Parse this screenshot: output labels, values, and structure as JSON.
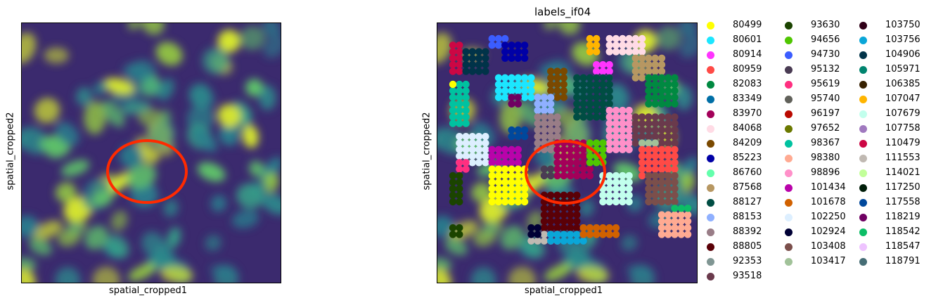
{
  "panels": [
    {
      "title": "",
      "xlabel": "spatial_cropped1",
      "ylabel": "spatial_cropped2"
    },
    {
      "title": "labels_if04",
      "xlabel": "spatial_cropped1",
      "ylabel": "spatial_cropped2"
    }
  ],
  "colors": {
    "background_low": "#3b2a6e",
    "background_mid": "#2a7f8e",
    "background_high": "#d8e830",
    "annotation_ellipse": "#ff2a00"
  },
  "chart_data": [
    {
      "type": "heatmap",
      "title": "",
      "xlabel": "spatial_cropped1",
      "ylabel": "spatial_cropped2",
      "colormap": "viridis",
      "axis_ticks": false,
      "grid": false,
      "annotation": "red ellipse around central nuclei"
    },
    {
      "type": "scatter",
      "title": "labels_if04",
      "xlabel": "spatial_cropped1",
      "ylabel": "spatial_cropped2",
      "axis_ticks": false,
      "grid": false,
      "legend_position": "right, outside",
      "legend_columns": 3,
      "annotation": "red ellipse around central cluster",
      "series": [
        {
          "name": "80499",
          "color": "#ffff00"
        },
        {
          "name": "80601",
          "color": "#1ce6ff"
        },
        {
          "name": "80914",
          "color": "#ff34ff"
        },
        {
          "name": "80959",
          "color": "#ff4a46"
        },
        {
          "name": "82083",
          "color": "#008941"
        },
        {
          "name": "83349",
          "color": "#006fa6"
        },
        {
          "name": "83970",
          "color": "#a30059"
        },
        {
          "name": "84068",
          "color": "#ffdbe5"
        },
        {
          "name": "84209",
          "color": "#7a4900"
        },
        {
          "name": "85223",
          "color": "#0000a6"
        },
        {
          "name": "86760",
          "color": "#63ffac"
        },
        {
          "name": "87568",
          "color": "#b79762"
        },
        {
          "name": "88127",
          "color": "#004d43"
        },
        {
          "name": "88153",
          "color": "#8fb0ff"
        },
        {
          "name": "88392",
          "color": "#997d87"
        },
        {
          "name": "88805",
          "color": "#5a0007"
        },
        {
          "name": "92353",
          "color": "#809693"
        },
        {
          "name": "93518",
          "color": "#6a3a4c"
        },
        {
          "name": "93630",
          "color": "#1b4400"
        },
        {
          "name": "94656",
          "color": "#4fc601"
        },
        {
          "name": "94730",
          "color": "#3b5dff"
        },
        {
          "name": "95132",
          "color": "#4a3b53"
        },
        {
          "name": "95619",
          "color": "#ff2f80"
        },
        {
          "name": "95740",
          "color": "#61615a"
        },
        {
          "name": "96197",
          "color": "#ba0900"
        },
        {
          "name": "97652",
          "color": "#6b7900"
        },
        {
          "name": "98367",
          "color": "#00c2a0"
        },
        {
          "name": "98380",
          "color": "#ffaa92"
        },
        {
          "name": "98896",
          "color": "#ff90c9"
        },
        {
          "name": "101434",
          "color": "#b903aa"
        },
        {
          "name": "101678",
          "color": "#d16100"
        },
        {
          "name": "102250",
          "color": "#ddefff"
        },
        {
          "name": "102924",
          "color": "#000035"
        },
        {
          "name": "103408",
          "color": "#7b4f4b"
        },
        {
          "name": "103417",
          "color": "#a1c299"
        },
        {
          "name": "103750",
          "color": "#300018"
        },
        {
          "name": "103756",
          "color": "#0aa6d8"
        },
        {
          "name": "104906",
          "color": "#013349"
        },
        {
          "name": "105971",
          "color": "#00846f"
        },
        {
          "name": "106385",
          "color": "#372101"
        },
        {
          "name": "107047",
          "color": "#ffb500"
        },
        {
          "name": "107679",
          "color": "#c2ffed"
        },
        {
          "name": "107758",
          "color": "#a079bf"
        },
        {
          "name": "110479",
          "color": "#cc0744"
        },
        {
          "name": "111553",
          "color": "#c0b9b2"
        },
        {
          "name": "114021",
          "color": "#c2ff99"
        },
        {
          "name": "117250",
          "color": "#001e09"
        },
        {
          "name": "117558",
          "color": "#00489c"
        },
        {
          "name": "118219",
          "color": "#6f0062"
        },
        {
          "name": "118542",
          "color": "#0cbd66"
        },
        {
          "name": "118547",
          "color": "#eec3ff"
        },
        {
          "name": "118791",
          "color": "#456d75"
        }
      ]
    }
  ]
}
